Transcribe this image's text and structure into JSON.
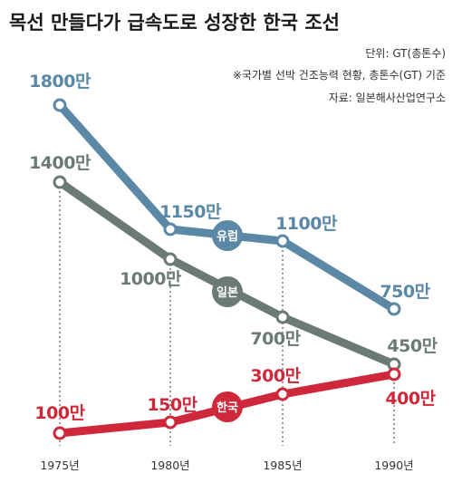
{
  "title": "목선 만들다가 급속도로 성장한 한국 조선",
  "notes": [
    "단위: GT(총톤수)",
    "※국가별 선박 건조능력 현황, 총톤수(GT) 기준",
    "자료: 일본해사산업연구소"
  ],
  "chart_data": {
    "type": "line",
    "title": "목선 만들다가 급속도로 성장한 한국 조선",
    "unit": "GT(총톤수)",
    "categories": [
      "1975년",
      "1980년",
      "1985년",
      "1990년"
    ],
    "series": [
      {
        "name": "유럽",
        "color": "#5b88a6",
        "values": [
          1800,
          1150,
          1100,
          750
        ],
        "labels": [
          "1800만",
          "1150만",
          "1100만",
          "750만"
        ]
      },
      {
        "name": "일본",
        "color": "#6b7a74",
        "values": [
          1400,
          1000,
          700,
          450
        ],
        "labels": [
          "1400만",
          "1000만",
          "700만",
          "450만"
        ]
      },
      {
        "name": "한국",
        "color": "#d0283b",
        "values": [
          100,
          150,
          300,
          400
        ],
        "labels": [
          "100만",
          "150만",
          "300만",
          "400만"
        ]
      }
    ],
    "grid": false,
    "legend": "inline badges on lines"
  }
}
